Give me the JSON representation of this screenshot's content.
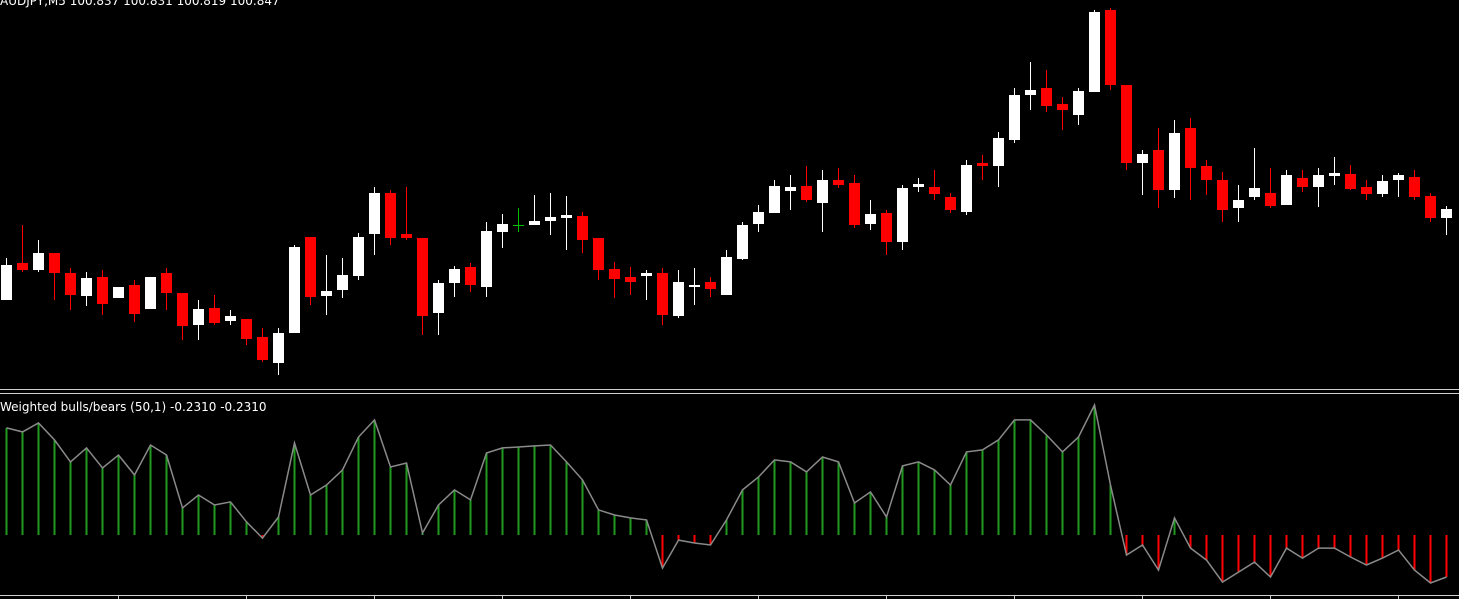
{
  "chart_data": [
    {
      "type": "candlestick",
      "title": "AUDJPY,M5  100.837 100.831 100.819 100.847",
      "open": [
        90,
        127,
        120,
        137,
        117,
        94,
        113,
        92,
        105,
        81,
        117,
        97,
        65,
        82,
        69,
        71,
        53,
        27,
        57,
        153,
        94,
        100,
        114,
        156,
        197,
        156,
        152,
        77,
        107,
        123,
        103,
        158,
        165,
        165,
        169,
        172,
        174,
        152,
        121,
        113,
        114,
        117,
        74,
        103,
        108,
        95,
        131,
        166,
        177,
        199,
        204,
        187,
        210,
        207,
        166,
        177,
        148,
        203,
        203,
        193,
        178,
        227,
        224,
        250,
        295,
        302,
        286,
        275,
        298,
        380,
        305,
        227,
        240,
        200,
        262,
        224,
        210,
        182,
        193,
        197,
        185,
        212,
        203,
        214,
        216,
        203,
        196,
        210,
        213,
        194,
        172
      ],
      "high": [
        132,
        165,
        150,
        137,
        122,
        118,
        120,
        103,
        110,
        113,
        122,
        97,
        90,
        95,
        80,
        71,
        62,
        62,
        145,
        153,
        135,
        132,
        157,
        203,
        200,
        203,
        152,
        110,
        124,
        127,
        168,
        176,
        182,
        195,
        197,
        194,
        178,
        152,
        128,
        123,
        120,
        122,
        120,
        122,
        113,
        140,
        168,
        185,
        210,
        215,
        224,
        220,
        222,
        215,
        190,
        180,
        205,
        212,
        220,
        197,
        230,
        235,
        258,
        302,
        328,
        320,
        293,
        302,
        380,
        382,
        305,
        240,
        262,
        270,
        272,
        230,
        218,
        205,
        242,
        222,
        220,
        220,
        222,
        233,
        225,
        210,
        215,
        217,
        220,
        197,
        184
      ],
      "low": [
        90,
        118,
        118,
        90,
        80,
        84,
        75,
        92,
        68,
        81,
        80,
        50,
        50,
        65,
        65,
        45,
        28,
        15,
        57,
        85,
        75,
        92,
        110,
        135,
        145,
        150,
        55,
        55,
        93,
        98,
        93,
        142,
        158,
        165,
        155,
        140,
        137,
        110,
        92,
        95,
        90,
        65,
        72,
        85,
        93,
        95,
        130,
        158,
        177,
        180,
        188,
        158,
        202,
        162,
        160,
        135,
        140,
        198,
        190,
        177,
        175,
        210,
        203,
        247,
        280,
        278,
        260,
        265,
        298,
        300,
        220,
        195,
        182,
        192,
        190,
        195,
        168,
        168,
        190,
        182,
        185,
        198,
        183,
        205,
        200,
        190,
        193,
        193,
        190,
        168,
        155
      ],
      "close": [
        125,
        120,
        137,
        117,
        95,
        112,
        86,
        103,
        76,
        113,
        97,
        64,
        81,
        67,
        74,
        51,
        30,
        57,
        143,
        93,
        99,
        115,
        153,
        197,
        152,
        152,
        74,
        107,
        121,
        105,
        159,
        166,
        165,
        169,
        173,
        175,
        150,
        120,
        111,
        108,
        117,
        75,
        108,
        105,
        101,
        133,
        165,
        178,
        204,
        203,
        190,
        210,
        205,
        165,
        176,
        148,
        202,
        206,
        196,
        180,
        225,
        224,
        252,
        295,
        300,
        284,
        280,
        299,
        378,
        305,
        227,
        236,
        200,
        257,
        222,
        210,
        180,
        190,
        202,
        184,
        215,
        203,
        215,
        217,
        201,
        196,
        209,
        215,
        193,
        172,
        181
      ],
      "ylim": [
        0,
        390
      ],
      "up_color": "#ffffff",
      "down_color": "#ff0000",
      "doji_color": "#00c000"
    },
    {
      "type": "oscillator",
      "title": "Weighted bulls/bears (50,1) -0.2310 -0.2310",
      "values": [
        0.589,
        0.567,
        0.616,
        0.523,
        0.402,
        0.479,
        0.369,
        0.44,
        0.33,
        0.495,
        0.44,
        0.149,
        0.22,
        0.165,
        0.182,
        0.072,
        -0.017,
        0.099,
        0.506,
        0.22,
        0.275,
        0.358,
        0.539,
        0.633,
        0.374,
        0.396,
        0.011,
        0.165,
        0.248,
        0.193,
        0.451,
        0.479,
        0.484,
        0.49,
        0.495,
        0.402,
        0.303,
        0.138,
        0.11,
        0.094,
        0.083,
        -0.182,
        -0.028,
        -0.044,
        -0.055,
        0.083,
        0.248,
        0.319,
        0.413,
        0.402,
        0.347,
        0.429,
        0.402,
        0.176,
        0.237,
        0.099,
        0.38,
        0.402,
        0.358,
        0.275,
        0.457,
        0.468,
        0.523,
        0.633,
        0.633,
        0.55,
        0.457,
        0.539,
        0.715,
        0.275,
        -0.11,
        -0.055,
        -0.193,
        0.094,
        -0.072,
        -0.138,
        -0.259,
        -0.204,
        -0.149,
        -0.231,
        -0.072,
        -0.127,
        -0.072,
        -0.072,
        -0.121,
        -0.165,
        -0.127,
        -0.083,
        -0.193,
        -0.264,
        -0.231
      ],
      "ylim": [
        -0.33,
        0.77
      ],
      "positive_color": "#1f9a1f",
      "negative_color": "#ff0000",
      "line_color": "#8a8a8a"
    }
  ]
}
